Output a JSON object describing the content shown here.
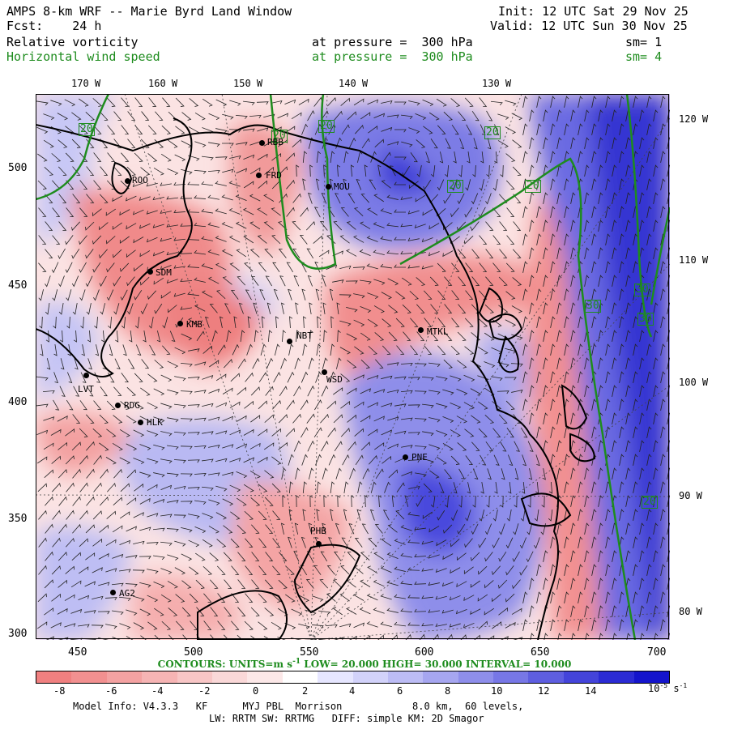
{
  "header": {
    "title": "AMPS 8-km WRF -- Marie Byrd Land Window",
    "init": "Init: 12 UTC Sat 29 Nov 25",
    "forecast": "Fcst:    24 h",
    "valid": "Valid: 12 UTC Sun 30 Nov 25"
  },
  "fields": [
    {
      "name": "Relative vorticity",
      "level": "at pressure =  300 hPa",
      "smoothing": "sm= 1",
      "color": "#000000"
    },
    {
      "name": "Horizontal wind speed",
      "level": "at pressure =  300 hPa",
      "smoothing": "sm= 4",
      "color": "#1e8c1e"
    }
  ],
  "longitude_labels_top": [
    "170 W",
    "160 W",
    "150 W",
    "140 W",
    "130 W"
  ],
  "longitude_labels_right": [
    "120 W",
    "110 W",
    "100 W",
    "90 W",
    "80 W"
  ],
  "x_ticks": [
    "450",
    "500",
    "550",
    "600",
    "650",
    "700"
  ],
  "y_ticks": [
    "500",
    "450",
    "400",
    "350",
    "300"
  ],
  "stations": [
    "ROO",
    "SDM",
    "KMB",
    "LVT",
    "RDG",
    "HLK",
    "NBT",
    "WSD",
    "MTKL",
    "FRD",
    "MOU",
    "RBB",
    "PNE",
    "PHB",
    "AG2"
  ],
  "contour_labels": [
    "20",
    "20",
    "20",
    "20",
    "20",
    "20",
    "30",
    "30",
    "30",
    "20"
  ],
  "contours_info": {
    "prefix": "CONTOURS:  UNITS=m s",
    "units_exp": "-1",
    "rest": "  LOW=  20.000     HIGH=  30.000     INTERVAL=   10.000"
  },
  "colorbar": {
    "ticks": [
      "-8",
      "-6",
      "-4",
      "-2",
      "0",
      "2",
      "4",
      "6",
      "8",
      "10",
      "12",
      "14"
    ],
    "unit_label": "10",
    "unit_exp": "-5",
    "unit_suffix": " s",
    "unit_suffix_exp": "-1",
    "colors": [
      "#f08080",
      "#f29090",
      "#f4a2a2",
      "#f6b4b4",
      "#f8c6c6",
      "#fad8d8",
      "#fce8e8",
      "#ffffff",
      "#e6e6ff",
      "#d2d2fa",
      "#bcbcf5",
      "#a6a6f0",
      "#8e8eeb",
      "#7777e6",
      "#5e5ee0",
      "#4444da",
      "#2b2bd4",
      "#1414cc"
    ]
  },
  "model_info": {
    "line1": "Model Info: V4.3.3   KF      MYJ PBL  Morrison            8.0 km,  60 levels,",
    "line2": "LW: RRTM SW: RRTMG   DIFF: simple KM: 2D Smagor"
  }
}
